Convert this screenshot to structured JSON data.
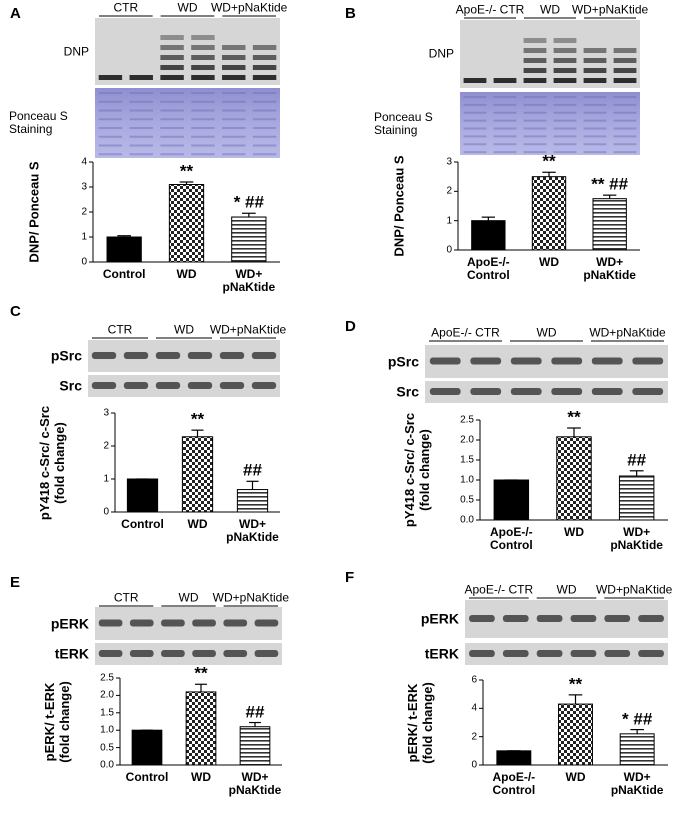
{
  "chart_data": [
    {
      "type": "bar",
      "panel": "A",
      "blot_groups": [
        "CTR",
        "WD",
        "WD+pNaKtide"
      ],
      "blot_rows": [
        "DNP",
        "Ponceau S Staining"
      ],
      "ylabel": [
        "DNP/ Ponceau S"
      ],
      "categories": [
        "Control",
        "WD",
        "WD+ pNaKtide"
      ],
      "values": [
        1.0,
        3.1,
        1.8
      ],
      "errors": [
        0.05,
        0.1,
        0.15
      ],
      "annotations": [
        null,
        "**",
        "* ##"
      ],
      "ylim": [
        0,
        4
      ],
      "yticks": [
        0,
        1,
        2,
        3,
        4
      ],
      "patterns": [
        "solid",
        "checker",
        "hlines"
      ],
      "color": "#000000"
    },
    {
      "type": "bar",
      "panel": "B",
      "blot_groups": [
        "ApoE-/- CTR",
        "WD",
        "WD+pNaKtide"
      ],
      "blot_rows": [
        "DNP",
        "Ponceau S Staining"
      ],
      "ylabel": [
        "DNP/ Ponceau S"
      ],
      "categories": [
        "ApoE-/- Control",
        "WD",
        "WD+ pNaKtide"
      ],
      "values": [
        1.0,
        2.5,
        1.75
      ],
      "errors": [
        0.12,
        0.15,
        0.12
      ],
      "annotations": [
        null,
        "**",
        "** ##"
      ],
      "ylim": [
        0,
        3
      ],
      "yticks": [
        0,
        1,
        2,
        3
      ],
      "patterns": [
        "solid",
        "checker",
        "hlines"
      ],
      "color": "#000000"
    },
    {
      "type": "bar",
      "panel": "C",
      "blot_groups": [
        "CTR",
        "WD",
        "WD+pNaKtide"
      ],
      "blot_rows": [
        "pSrc",
        "Src"
      ],
      "ylabel": [
        "pY418 c-Src/ c-Src",
        "(fold change)"
      ],
      "categories": [
        "Control",
        "WD",
        "WD+ pNaKtide"
      ],
      "values": [
        1.0,
        2.28,
        0.68
      ],
      "errors": [
        0,
        0.2,
        0.25
      ],
      "annotations": [
        null,
        "**",
        "##"
      ],
      "ylim": [
        0,
        3
      ],
      "yticks": [
        0,
        1,
        2,
        3
      ],
      "patterns": [
        "solid",
        "checker",
        "hlines"
      ],
      "color": "#000000"
    },
    {
      "type": "bar",
      "panel": "D",
      "blot_groups": [
        "ApoE-/- CTR",
        "WD",
        "WD+pNaKtide"
      ],
      "blot_rows": [
        "pSrc",
        "Src"
      ],
      "ylabel": [
        "pY418 c-Src/ c-Src",
        "(fold change)"
      ],
      "categories": [
        "ApoE-/- Control",
        "WD",
        "WD+ pNaKtide"
      ],
      "values": [
        1.0,
        2.08,
        1.1
      ],
      "errors": [
        0,
        0.22,
        0.13
      ],
      "annotations": [
        null,
        "**",
        "##"
      ],
      "ylim": [
        0,
        2.5
      ],
      "yticks": [
        {
          "value": 0,
          "label": "0.0"
        },
        {
          "value": 0.5,
          "label": "0.5"
        },
        {
          "value": 1,
          "label": "1.0"
        },
        {
          "value": 1.5,
          "label": "1.5"
        },
        {
          "value": 2,
          "label": "2.0"
        },
        {
          "value": 2.5,
          "label": "2.5"
        }
      ],
      "patterns": [
        "solid",
        "checker",
        "hlines"
      ],
      "color": "#000000"
    },
    {
      "type": "bar",
      "panel": "E",
      "blot_groups": [
        "CTR",
        "WD",
        "WD+pNaKtide"
      ],
      "blot_rows": [
        "pERK",
        "tERK"
      ],
      "ylabel": [
        "pERK/ t-ERK",
        "(fold change)"
      ],
      "categories": [
        "Control",
        "WD",
        "WD+ pNaKtide"
      ],
      "values": [
        1.0,
        2.1,
        1.1
      ],
      "errors": [
        0,
        0.22,
        0.12
      ],
      "annotations": [
        null,
        "**",
        "##"
      ],
      "ylim": [
        0,
        2.5
      ],
      "yticks": [
        {
          "value": 0,
          "label": "0.0"
        },
        {
          "value": 0.5,
          "label": "0.5"
        },
        {
          "value": 1,
          "label": "1.0"
        },
        {
          "value": 1.5,
          "label": "1.5"
        },
        {
          "value": 2,
          "label": "2.0"
        },
        {
          "value": 2.5,
          "label": "2.5"
        }
      ],
      "patterns": [
        "solid",
        "checker",
        "hlines"
      ],
      "color": "#000000"
    },
    {
      "type": "bar",
      "panel": "F",
      "blot_groups": [
        "ApoE-/- CTR",
        "WD",
        "WD+pNaKtide"
      ],
      "blot_rows": [
        "pERK",
        "tERK"
      ],
      "ylabel": [
        "pERK/ t-ERK",
        "(fold change)"
      ],
      "categories": [
        "ApoE-/- Control",
        "WD",
        "WD+ pNaKtide"
      ],
      "values": [
        1.0,
        4.3,
        2.2
      ],
      "errors": [
        0,
        0.65,
        0.3
      ],
      "annotations": [
        null,
        "**",
        "* ##"
      ],
      "ylim": [
        0,
        6
      ],
      "yticks": [
        0,
        2,
        4,
        6
      ],
      "patterns": [
        "solid",
        "checker",
        "hlines"
      ],
      "color": "#000000"
    }
  ]
}
